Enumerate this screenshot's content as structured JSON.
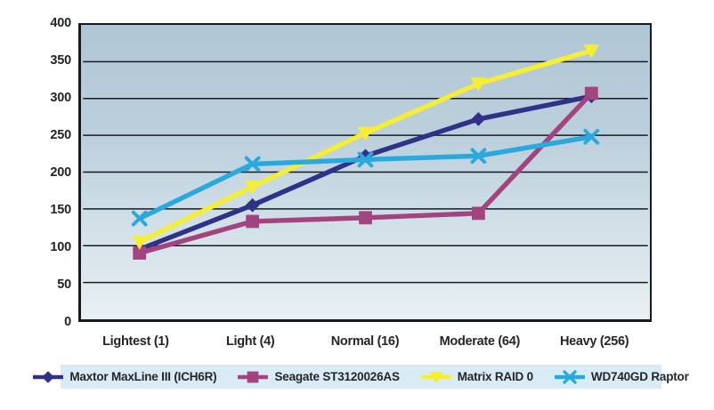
{
  "chart_data": {
    "type": "line",
    "title": "",
    "xlabel": "",
    "ylabel": "",
    "categories": [
      "Lightest (1)",
      "Light (4)",
      "Normal (16)",
      "Moderate (64)",
      "Heavy (256)"
    ],
    "series": [
      {
        "name": "Maxtor MaxLine III (ICH6R)",
        "marker": "diamond",
        "color": "#2f3287",
        "values": [
          95,
          155,
          222,
          272,
          303
        ]
      },
      {
        "name": "Seagate ST3120026AS",
        "marker": "square",
        "color": "#a34480",
        "values": [
          90,
          133,
          138,
          144,
          307
        ]
      },
      {
        "name": "Matrix RAID 0",
        "marker": "triangle-down",
        "color": "#f6ee33",
        "values": [
          105,
          180,
          253,
          320,
          365
        ]
      },
      {
        "name": "WD740GD Raptor",
        "marker": "x",
        "color": "#2aa9dd",
        "values": [
          137,
          211,
          217,
          222,
          248
        ]
      }
    ],
    "ylim": [
      0,
      400
    ],
    "ytick_step": 50,
    "yticks": [
      "400",
      "350",
      "300",
      "250",
      "200",
      "150",
      "100",
      "50",
      "0"
    ],
    "grid": "horizontal",
    "legend_position": "bottom"
  },
  "colors": {
    "plot_background_top": "#b0c6d5",
    "plot_background_bottom": "#e9f0f3",
    "legend_background": "#d9ecf5",
    "gridline": "#171b20",
    "text": "#22262b"
  }
}
